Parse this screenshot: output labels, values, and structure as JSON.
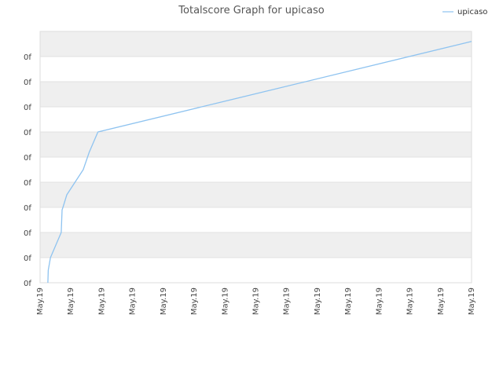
{
  "chart_data": {
    "type": "line",
    "title": "Totalscore Graph for upicaso",
    "xlabel": "",
    "ylabel": "",
    "x_tick_labels": [
      "May.19",
      "May.19",
      "May.19",
      "May.19",
      "May.19",
      "May.19",
      "May.19",
      "May.19",
      "May.19",
      "May.19",
      "May.19",
      "May.19",
      "May.19",
      "May.19",
      "May.19"
    ],
    "y_tick_labels": [
      "0f",
      "0f",
      "0f",
      "0f",
      "0f",
      "0f",
      "0f",
      "0f",
      "0f",
      "0f"
    ],
    "xlim": [
      0,
      100
    ],
    "ylim": [
      0,
      10
    ],
    "grid": true,
    "legend_position": "top-right",
    "series": [
      {
        "name": "upicaso",
        "color": "#8ec3f0",
        "x": [
          1.8,
          1.9,
          2.4,
          4.9,
          5.1,
          5.3,
          6.2,
          10.0,
          11.4,
          13.4,
          100.0
        ],
        "y": [
          0.0,
          0.5,
          1.0,
          2.0,
          2.9,
          3.0,
          3.5,
          4.5,
          5.2,
          6.0,
          9.6
        ]
      }
    ],
    "band_colors": [
      "#efefef",
      "#ffffff"
    ]
  }
}
